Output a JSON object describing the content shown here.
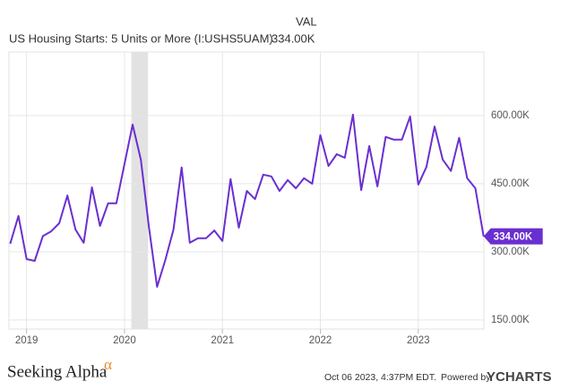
{
  "chart_data": {
    "type": "line",
    "column_header": "VAL",
    "current_value_label": "334.00K",
    "x": [
      2018.833,
      2018.917,
      2019.0,
      2019.083,
      2019.167,
      2019.25,
      2019.333,
      2019.417,
      2019.5,
      2019.583,
      2019.667,
      2019.75,
      2019.833,
      2019.917,
      2020.0,
      2020.083,
      2020.167,
      2020.25,
      2020.333,
      2020.417,
      2020.5,
      2020.583,
      2020.667,
      2020.75,
      2020.833,
      2020.917,
      2021.0,
      2021.083,
      2021.167,
      2021.25,
      2021.333,
      2021.417,
      2021.5,
      2021.583,
      2021.667,
      2021.75,
      2021.833,
      2021.917,
      2022.0,
      2022.083,
      2022.167,
      2022.25,
      2022.333,
      2022.417,
      2022.5,
      2022.583,
      2022.667,
      2022.75,
      2022.833,
      2022.917,
      2023.0,
      2023.083,
      2023.167,
      2023.25,
      2023.333,
      2023.417,
      2023.5,
      2023.583,
      2023.667
    ],
    "series": [
      {
        "name": "US Housing Starts: 5 Units or More (I:USHS5UAM)",
        "color": "#6a2fd0",
        "values": [
          318,
          379,
          284,
          280,
          335,
          345,
          363,
          424,
          349,
          320,
          442,
          357,
          407,
          407,
          493,
          580,
          503,
          353,
          223,
          282,
          349,
          486,
          320,
          330,
          330,
          347,
          324,
          460,
          353,
          434,
          416,
          470,
          466,
          434,
          458,
          440,
          462,
          450,
          557,
          489,
          515,
          507,
          602,
          436,
          533,
          444,
          553,
          547,
          547,
          598,
          448,
          487,
          576,
          503,
          478,
          551,
          462,
          440,
          334
        ]
      }
    ],
    "last_value_label": "334.00K",
    "shaded_region": [
      2020.07,
      2020.24
    ],
    "xlim": [
      2018.82,
      2023.67
    ],
    "xticks": [
      2019,
      2020,
      2021,
      2022,
      2023
    ],
    "ylim": [
      130,
      740
    ],
    "yticks": [
      {
        "value": 150,
        "label": "150.00K"
      },
      {
        "value": 300,
        "label": "300.00K"
      },
      {
        "value": 450,
        "label": "450.00K"
      },
      {
        "value": 600,
        "label": "600.00K"
      }
    ],
    "grid": true,
    "footer": {
      "brand": "Seeking Alpha",
      "brand_mark": "α",
      "timestamp": "Oct 06 2023, 4:37PM EDT.",
      "powered": "Powered by",
      "provider": "YCHARTS"
    }
  }
}
